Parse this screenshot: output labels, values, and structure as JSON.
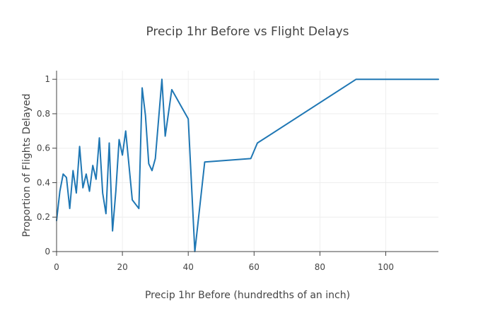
{
  "chart_data": {
    "type": "line",
    "title": "Precip 1hr Before vs Flight Delays",
    "xlabel": "Precip 1hr Before (hundredths of an inch)",
    "ylabel": "Proportion of Flights Delayed",
    "xlim": [
      0,
      116
    ],
    "ylim": [
      0,
      1.05
    ],
    "x_ticks": [
      0,
      20,
      40,
      60,
      80,
      100
    ],
    "y_ticks": [
      0,
      0.2,
      0.4,
      0.6,
      0.8,
      1
    ],
    "x_tick_labels": [
      "0",
      "20",
      "40",
      "60",
      "80",
      "100"
    ],
    "y_tick_labels": [
      "0",
      "0.2",
      "0.4",
      "0.6",
      "0.8",
      "1"
    ],
    "grid": true,
    "legend": "none",
    "line_color": "#1f77b4",
    "series": [
      {
        "x": [
          0,
          1,
          2,
          3,
          4,
          5,
          6,
          7,
          8,
          9,
          10,
          11,
          12,
          13,
          14,
          15,
          16,
          17,
          18,
          19,
          20,
          21,
          23,
          25,
          26,
          27,
          28,
          29,
          30,
          32,
          33,
          35,
          40,
          42,
          45,
          59,
          61,
          91,
          116
        ],
        "y": [
          0.18,
          0.35,
          0.45,
          0.43,
          0.25,
          0.47,
          0.34,
          0.61,
          0.37,
          0.45,
          0.35,
          0.5,
          0.42,
          0.66,
          0.34,
          0.22,
          0.63,
          0.12,
          0.35,
          0.65,
          0.56,
          0.7,
          0.3,
          0.25,
          0.95,
          0.79,
          0.51,
          0.47,
          0.54,
          1.0,
          0.67,
          0.94,
          0.77,
          0.0,
          0.52,
          0.54,
          0.63,
          1.0,
          1.0
        ]
      }
    ]
  }
}
